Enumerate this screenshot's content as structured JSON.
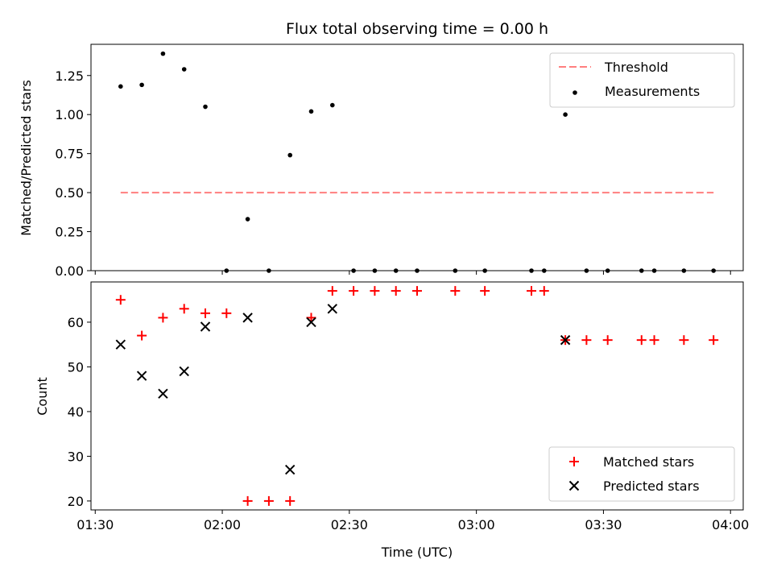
{
  "chart_data": [
    {
      "type": "scatter",
      "title": "Flux total observing time = 0.00 h",
      "ylabel": "Matched/Predicted stars",
      "xlabel": "",
      "ylim": [
        0,
        1.45
      ],
      "xlim": [
        "01:29",
        "04:03"
      ],
      "xticks": [
        "01:30",
        "02:00",
        "02:30",
        "03:00",
        "03:30",
        "04:00"
      ],
      "yticks": [
        "0.00",
        "0.25",
        "0.50",
        "0.75",
        "1.00",
        "1.25"
      ],
      "grid": false,
      "legend_position": "top-right",
      "legend": [
        {
          "label": "Threshold",
          "style": "dashed-line",
          "color": "#ff7f7f"
        },
        {
          "label": "Measurements",
          "style": "dot",
          "color": "#000000"
        }
      ],
      "threshold": {
        "name": "Threshold",
        "y": 0.5,
        "x_start": "01:36",
        "x_end": "03:56",
        "color": "#ff7f7f"
      },
      "series": [
        {
          "name": "Measurements",
          "marker": "dot",
          "color": "#000000",
          "x": [
            "01:36",
            "01:41",
            "01:46",
            "01:51",
            "01:56",
            "02:01",
            "02:06",
            "02:11",
            "02:16",
            "02:21",
            "02:26",
            "02:31",
            "02:36",
            "02:41",
            "02:46",
            "02:55",
            "03:02",
            "03:13",
            "03:16",
            "03:21",
            "03:26",
            "03:31",
            "03:39",
            "03:42",
            "03:49",
            "03:56"
          ],
          "y": [
            1.18,
            1.19,
            1.39,
            1.29,
            1.05,
            0.0,
            0.33,
            0.0,
            0.74,
            1.02,
            1.06,
            0.0,
            0.0,
            0.0,
            0.0,
            0.0,
            0.0,
            0.0,
            0.0,
            1.0,
            0.0,
            0.0,
            0.0,
            0.0,
            0.0,
            0.0
          ]
        }
      ]
    },
    {
      "type": "scatter",
      "title": "",
      "ylabel": "Count",
      "xlabel": "Time (UTC)",
      "ylim": [
        18,
        69
      ],
      "xlim": [
        "01:29",
        "04:03"
      ],
      "xticks": [
        "01:30",
        "02:00",
        "02:30",
        "03:00",
        "03:30",
        "04:00"
      ],
      "yticks": [
        "20",
        "30",
        "40",
        "50",
        "60"
      ],
      "grid": false,
      "legend_position": "bottom-right",
      "legend": [
        {
          "label": "Matched stars",
          "style": "plus",
          "color": "#ff0000"
        },
        {
          "label": "Predicted stars",
          "style": "x",
          "color": "#000000"
        }
      ],
      "series": [
        {
          "name": "Matched stars",
          "marker": "plus",
          "color": "#ff0000",
          "x": [
            "01:36",
            "01:41",
            "01:46",
            "01:51",
            "01:56",
            "02:01",
            "02:06",
            "02:11",
            "02:16",
            "02:21",
            "02:26",
            "02:31",
            "02:36",
            "02:41",
            "02:46",
            "02:55",
            "03:02",
            "03:13",
            "03:16",
            "03:21",
            "03:26",
            "03:31",
            "03:39",
            "03:42",
            "03:49",
            "03:56"
          ],
          "y": [
            65,
            57,
            61,
            63,
            62,
            62,
            20,
            20,
            20,
            61,
            67,
            67,
            67,
            67,
            67,
            67,
            67,
            67,
            67,
            56,
            56,
            56,
            56,
            56,
            56,
            56
          ]
        },
        {
          "name": "Predicted stars",
          "marker": "x",
          "color": "#000000",
          "x": [
            "01:36",
            "01:41",
            "01:46",
            "01:51",
            "01:56",
            "02:06",
            "02:16",
            "02:21",
            "02:26",
            "03:21"
          ],
          "y": [
            55,
            48,
            44,
            49,
            59,
            61,
            27,
            60,
            63,
            56
          ]
        }
      ]
    }
  ]
}
